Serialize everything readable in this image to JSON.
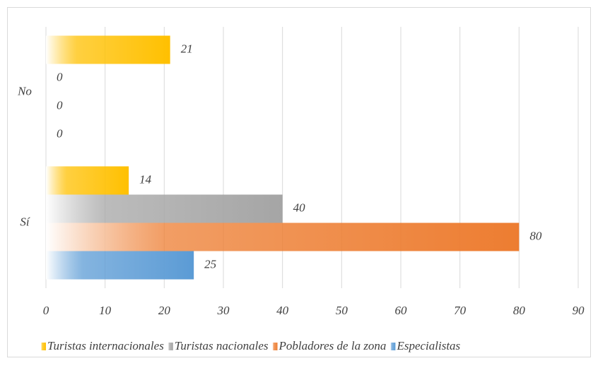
{
  "chart_data": {
    "type": "barh",
    "categories": [
      "No",
      "Sí"
    ],
    "series": [
      {
        "name": "Turistas internacionales",
        "color": "#ffc000",
        "values": [
          21,
          14
        ]
      },
      {
        "name": "Turistas nacionales",
        "color": "#a5a5a5",
        "values": [
          0,
          40
        ]
      },
      {
        "name": "Pobladores de la zona",
        "color": "#ed7d31",
        "values": [
          0,
          80
        ]
      },
      {
        "name": "Especialistas",
        "color": "#5b9bd5",
        "values": [
          0,
          25
        ]
      }
    ],
    "xlim": [
      0,
      90
    ],
    "xticks": [
      0,
      10,
      20,
      30,
      40,
      50,
      60,
      70,
      80,
      90
    ],
    "grid": true,
    "legend": "bottom"
  }
}
